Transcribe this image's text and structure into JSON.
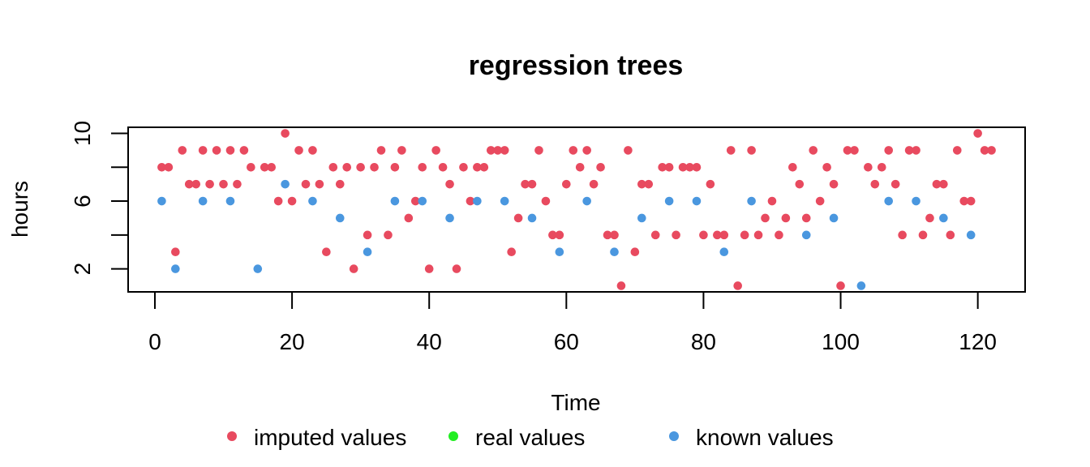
{
  "chart_data": {
    "type": "scatter",
    "title": "regression trees",
    "xlabel": "Time",
    "ylabel": "hours",
    "xlim": [
      -3.9,
      126.9
    ],
    "ylim": [
      0.64,
      10.36
    ],
    "x_ticks": [
      0,
      20,
      40,
      60,
      80,
      100,
      120
    ],
    "y_ticks": [
      2,
      6,
      10
    ],
    "y_minor_ticks": [
      4,
      8
    ],
    "grid": false,
    "legend": {
      "placement": "bottom",
      "entries": [
        {
          "name": "imputed values",
          "color": "#E84A5F"
        },
        {
          "name": "real values",
          "color": "#22EE22"
        },
        {
          "name": "known values",
          "color": "#4A97DF"
        }
      ]
    },
    "series": [
      {
        "name": "imputed values",
        "color": "#E84A5F",
        "points": [
          [
            1,
            8
          ],
          [
            2,
            8
          ],
          [
            3,
            3
          ],
          [
            4,
            9
          ],
          [
            5,
            7
          ],
          [
            6,
            7
          ],
          [
            7,
            9
          ],
          [
            8,
            7
          ],
          [
            9,
            9
          ],
          [
            10,
            7
          ],
          [
            11,
            9
          ],
          [
            12,
            7
          ],
          [
            13,
            9
          ],
          [
            14,
            8
          ],
          [
            16,
            8
          ],
          [
            17,
            8
          ],
          [
            18,
            6
          ],
          [
            19,
            10
          ],
          [
            20,
            6
          ],
          [
            21,
            9
          ],
          [
            22,
            7
          ],
          [
            23,
            9
          ],
          [
            24,
            7
          ],
          [
            25,
            3
          ],
          [
            26,
            8
          ],
          [
            27,
            7
          ],
          [
            28,
            8
          ],
          [
            29,
            2
          ],
          [
            30,
            8
          ],
          [
            31,
            4
          ],
          [
            32,
            8
          ],
          [
            33,
            9
          ],
          [
            34,
            4
          ],
          [
            35,
            8
          ],
          [
            36,
            9
          ],
          [
            37,
            5
          ],
          [
            38,
            6
          ],
          [
            39,
            8
          ],
          [
            40,
            2
          ],
          [
            41,
            9
          ],
          [
            42,
            8
          ],
          [
            43,
            7
          ],
          [
            44,
            2
          ],
          [
            45,
            8
          ],
          [
            46,
            6
          ],
          [
            47,
            8
          ],
          [
            48,
            8
          ],
          [
            49,
            9
          ],
          [
            50,
            9
          ],
          [
            51,
            9
          ],
          [
            52,
            3
          ],
          [
            53,
            5
          ],
          [
            54,
            7
          ],
          [
            55,
            7
          ],
          [
            56,
            9
          ],
          [
            57,
            6
          ],
          [
            58,
            4
          ],
          [
            59,
            4
          ],
          [
            60,
            7
          ],
          [
            61,
            9
          ],
          [
            62,
            8
          ],
          [
            63,
            9
          ],
          [
            64,
            7
          ],
          [
            65,
            8
          ],
          [
            66,
            4
          ],
          [
            67,
            4
          ],
          [
            68,
            1
          ],
          [
            69,
            9
          ],
          [
            70,
            3
          ],
          [
            71,
            7
          ],
          [
            72,
            7
          ],
          [
            73,
            4
          ],
          [
            74,
            8
          ],
          [
            75,
            8
          ],
          [
            76,
            4
          ],
          [
            77,
            8
          ],
          [
            78,
            8
          ],
          [
            79,
            8
          ],
          [
            80,
            4
          ],
          [
            81,
            7
          ],
          [
            82,
            4
          ],
          [
            83,
            4
          ],
          [
            84,
            9
          ],
          [
            85,
            1
          ],
          [
            86,
            4
          ],
          [
            87,
            9
          ],
          [
            88,
            4
          ],
          [
            89,
            5
          ],
          [
            90,
            6
          ],
          [
            91,
            4
          ],
          [
            92,
            5
          ],
          [
            93,
            8
          ],
          [
            94,
            7
          ],
          [
            95,
            5
          ],
          [
            96,
            9
          ],
          [
            97,
            6
          ],
          [
            98,
            8
          ],
          [
            99,
            7
          ],
          [
            100,
            1
          ],
          [
            101,
            9
          ],
          [
            102,
            9
          ],
          [
            104,
            8
          ],
          [
            105,
            7
          ],
          [
            106,
            8
          ],
          [
            107,
            9
          ],
          [
            108,
            7
          ],
          [
            109,
            4
          ],
          [
            110,
            9
          ],
          [
            111,
            9
          ],
          [
            112,
            4
          ],
          [
            113,
            5
          ],
          [
            114,
            7
          ],
          [
            115,
            7
          ],
          [
            116,
            4
          ],
          [
            117,
            9
          ],
          [
            118,
            6
          ],
          [
            119,
            6
          ],
          [
            120,
            10
          ],
          [
            121,
            9
          ],
          [
            122,
            9
          ]
        ]
      },
      {
        "name": "real values",
        "color": "#22EE22",
        "points": []
      },
      {
        "name": "known values",
        "color": "#4A97DF",
        "points": [
          [
            1,
            6
          ],
          [
            3,
            2
          ],
          [
            7,
            6
          ],
          [
            11,
            6
          ],
          [
            15,
            2
          ],
          [
            19,
            7
          ],
          [
            23,
            6
          ],
          [
            27,
            5
          ],
          [
            31,
            3
          ],
          [
            35,
            6
          ],
          [
            39,
            6
          ],
          [
            43,
            5
          ],
          [
            47,
            6
          ],
          [
            51,
            6
          ],
          [
            55,
            5
          ],
          [
            59,
            3
          ],
          [
            63,
            6
          ],
          [
            67,
            3
          ],
          [
            71,
            5
          ],
          [
            75,
            6
          ],
          [
            79,
            6
          ],
          [
            83,
            3
          ],
          [
            87,
            6
          ],
          [
            95,
            4
          ],
          [
            99,
            5
          ],
          [
            103,
            1
          ],
          [
            107,
            6
          ],
          [
            111,
            6
          ],
          [
            115,
            5
          ],
          [
            119,
            4
          ]
        ]
      }
    ]
  }
}
